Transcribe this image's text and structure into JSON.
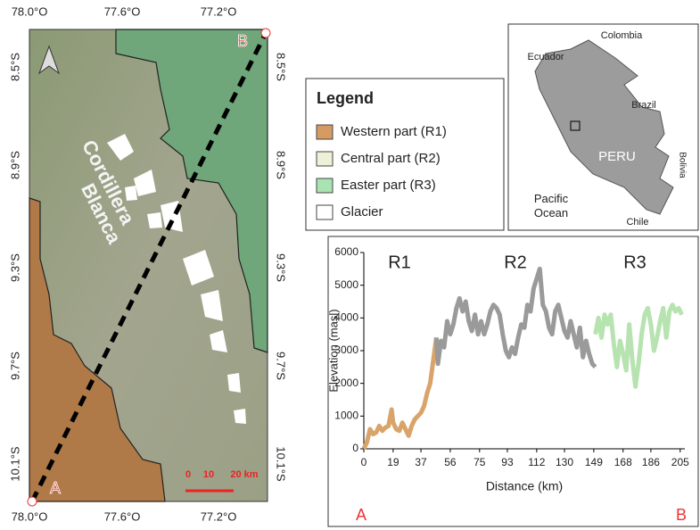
{
  "map": {
    "lon_labels": [
      "78.0°O",
      "77.6°O",
      "77.2°O"
    ],
    "lat_labels": [
      "8.5°S",
      "8.9°S",
      "9.3°S",
      "9.7°S",
      "10.1°S"
    ],
    "range_name": [
      "Cordillera",
      "Blanca"
    ],
    "points": [
      "A",
      "B"
    ],
    "scale": [
      "0",
      "10",
      "20 km"
    ]
  },
  "legend": {
    "title": "Legend",
    "items": [
      {
        "label": "Western part (R1)",
        "color": "#d59b63"
      },
      {
        "label": "Central part (R2)",
        "color": "#eef0d8"
      },
      {
        "label": "Easter part (R3)",
        "color": "#a9e3b4"
      },
      {
        "label": "Glacier",
        "color": "#ffffff"
      }
    ]
  },
  "inset": {
    "labels": [
      "Ecuador",
      "Colombia",
      "Brazil",
      "PERU",
      "Bolivia",
      "Pacific Ocean",
      "Chile"
    ]
  },
  "chart_data": {
    "type": "line",
    "xlabel": "Distance (km)",
    "ylabel": "Elevation (masl)",
    "xlim": [
      0,
      208
    ],
    "ylim": [
      0,
      6000
    ],
    "xticks": [
      0,
      19,
      37,
      56,
      75,
      93,
      112,
      130,
      149,
      168,
      186,
      205
    ],
    "yticks": [
      0,
      1000,
      2000,
      3000,
      4000,
      5000,
      6000
    ],
    "series": [
      {
        "name": "R1",
        "color": "#d9a46a",
        "x": [
          0,
          2,
          4,
          6,
          8,
          10,
          12,
          14,
          16,
          18,
          19,
          21,
          23,
          25,
          27,
          29,
          31,
          33,
          35,
          37,
          39,
          41,
          43,
          45,
          47
        ],
        "values": [
          0,
          200,
          600,
          450,
          500,
          700,
          550,
          650,
          700,
          1200,
          800,
          600,
          550,
          800,
          600,
          400,
          700,
          900,
          1000,
          1100,
          1300,
          1700,
          2000,
          2700,
          3400
        ]
      },
      {
        "name": "R2",
        "color": "#9a9a9a",
        "x": [
          47,
          48,
          50,
          52,
          54,
          56,
          58,
          60,
          62,
          64,
          66,
          68,
          70,
          72,
          74,
          76,
          78,
          80,
          82,
          84,
          86,
          88,
          90,
          92,
          94,
          96,
          98,
          100,
          102,
          104,
          106,
          108,
          110,
          112,
          114,
          116,
          118,
          120,
          122,
          124,
          126,
          128,
          130,
          132,
          134,
          136,
          138,
          140,
          142,
          144,
          146,
          148,
          150
        ],
        "values": [
          3400,
          2600,
          3300,
          3100,
          3900,
          3500,
          3800,
          4300,
          4600,
          4200,
          4500,
          3900,
          3600,
          4100,
          3500,
          3900,
          3500,
          3800,
          4200,
          4400,
          4300,
          4100,
          3500,
          3000,
          2800,
          3100,
          2900,
          3400,
          3800,
          3700,
          4400,
          4200,
          4900,
          5200,
          5500,
          4400,
          4200,
          3700,
          3500,
          4200,
          4400,
          4000,
          3600,
          3400,
          3900,
          3500,
          3100,
          3700,
          2800,
          3300,
          2900,
          2600,
          2500
        ]
      },
      {
        "name": "R3",
        "color": "#b6e3b0",
        "x": [
          150,
          152,
          154,
          156,
          158,
          160,
          162,
          164,
          166,
          168,
          170,
          172,
          174,
          176,
          178,
          180,
          182,
          184,
          186,
          188,
          190,
          192,
          194,
          196,
          198,
          200,
          202,
          204,
          206
        ],
        "values": [
          3500,
          4000,
          3400,
          4100,
          3800,
          4100,
          3200,
          2500,
          3300,
          2900,
          2400,
          3800,
          2700,
          1900,
          2600,
          3500,
          4100,
          4300,
          3800,
          3000,
          3400,
          3900,
          4300,
          3400,
          4200,
          4400,
          4200,
          4300,
          4100
        ]
      }
    ]
  }
}
